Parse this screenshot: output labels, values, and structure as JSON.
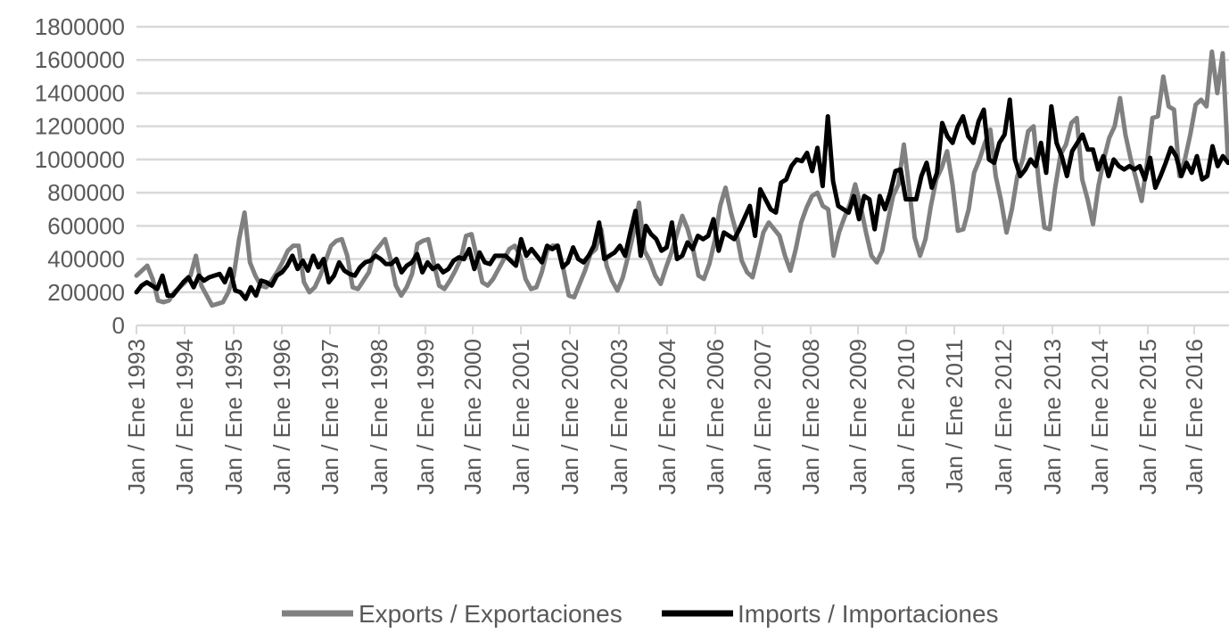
{
  "chart_data": {
    "type": "line",
    "title": "",
    "xlabel": "",
    "ylabel": "",
    "ylim": [
      0,
      1800000
    ],
    "y_ticks": [
      0,
      200000,
      400000,
      600000,
      800000,
      1000000,
      1200000,
      1400000,
      1600000,
      1800000
    ],
    "y_tick_labels": [
      "0",
      "200000",
      "400000",
      "600000",
      "800000",
      "1000000",
      "1200000",
      "1400000",
      "1600000",
      "1800000"
    ],
    "grid": true,
    "x_tick_labels": [
      "Jan / Ene 1993",
      "Jan / Ene 1994",
      "Jan / Ene 1995",
      "Jan / Ene 1996",
      "Jan / Ene 1997",
      "Jan / Ene 1998",
      "Jan / Ene 1999",
      "Jan / Ene 2000",
      "Jan / Ene 2001",
      "Jan / Ene 2002",
      "Jan / Ene 2003",
      "Jan / Ene 2004",
      "Jan / Ene 2006",
      "Jan / Ene 2007",
      "Jan / Ene 2008",
      "Jan / Ene 2009",
      "Jan / Ene 2010",
      "Jan / Ene 2011",
      "Jan / Ene 2012",
      "Jan / Ene 2013",
      "Jan / Ene 2014",
      "Jan / Ene 2015",
      "Jan / Ene 2016"
    ],
    "legend_position": "bottom",
    "series": [
      {
        "name": "Exports / Exportaciones",
        "color": "#808080",
        "values": [
          300000,
          330000,
          360000,
          280000,
          150000,
          140000,
          150000,
          200000,
          230000,
          260000,
          300000,
          420000,
          240000,
          180000,
          120000,
          130000,
          140000,
          200000,
          300000,
          520000,
          680000,
          380000,
          300000,
          240000,
          230000,
          270000,
          320000,
          380000,
          450000,
          480000,
          480000,
          260000,
          200000,
          230000,
          300000,
          390000,
          480000,
          510000,
          520000,
          420000,
          230000,
          220000,
          270000,
          320000,
          440000,
          480000,
          520000,
          400000,
          240000,
          180000,
          230000,
          310000,
          490000,
          510000,
          520000,
          380000,
          240000,
          220000,
          270000,
          330000,
          400000,
          540000,
          550000,
          410000,
          260000,
          240000,
          280000,
          340000,
          400000,
          460000,
          480000,
          420000,
          280000,
          220000,
          230000,
          320000,
          450000,
          480000,
          480000,
          340000,
          180000,
          170000,
          250000,
          330000,
          430000,
          460000,
          580000,
          360000,
          270000,
          210000,
          290000,
          420000,
          560000,
          740000,
          450000,
          390000,
          300000,
          250000,
          350000,
          440000,
          550000,
          660000,
          580000,
          460000,
          300000,
          280000,
          370000,
          510000,
          720000,
          830000,
          680000,
          560000,
          390000,
          320000,
          290000,
          420000,
          560000,
          620000,
          580000,
          540000,
          420000,
          330000,
          460000,
          620000,
          710000,
          780000,
          800000,
          720000,
          700000,
          420000,
          560000,
          650000,
          730000,
          850000,
          720000,
          560000,
          420000,
          380000,
          450000,
          620000,
          780000,
          850000,
          1090000,
          820000,
          530000,
          420000,
          520000,
          720000,
          880000,
          950000,
          1050000,
          850000,
          570000,
          580000,
          700000,
          920000,
          1000000,
          1100000,
          1180000,
          900000,
          750000,
          560000,
          700000,
          900000,
          1000000,
          1170000,
          1200000,
          850000,
          590000,
          580000,
          830000,
          1030000,
          1090000,
          1220000,
          1250000,
          880000,
          760000,
          610000,
          840000,
          1000000,
          1130000,
          1200000,
          1370000,
          1150000,
          1000000,
          880000,
          750000,
          980000,
          1250000,
          1260000,
          1500000,
          1320000,
          1300000,
          900000,
          1000000,
          1150000,
          1330000,
          1360000,
          1320000,
          1650000,
          1400000,
          1640000,
          980000
        ]
      },
      {
        "name": "Imports / Importaciones",
        "color": "#000000",
        "values": [
          200000,
          240000,
          260000,
          240000,
          220000,
          300000,
          180000,
          180000,
          220000,
          260000,
          290000,
          230000,
          300000,
          270000,
          290000,
          300000,
          310000,
          260000,
          340000,
          210000,
          200000,
          160000,
          230000,
          180000,
          270000,
          260000,
          240000,
          300000,
          320000,
          360000,
          420000,
          340000,
          390000,
          330000,
          420000,
          350000,
          400000,
          260000,
          300000,
          380000,
          330000,
          310000,
          300000,
          350000,
          380000,
          390000,
          420000,
          400000,
          370000,
          370000,
          400000,
          320000,
          360000,
          380000,
          430000,
          320000,
          380000,
          340000,
          360000,
          320000,
          340000,
          390000,
          410000,
          400000,
          460000,
          340000,
          440000,
          380000,
          370000,
          420000,
          420000,
          420000,
          390000,
          360000,
          520000,
          420000,
          460000,
          420000,
          380000,
          480000,
          460000,
          480000,
          350000,
          380000,
          470000,
          400000,
          380000,
          420000,
          480000,
          620000,
          400000,
          420000,
          440000,
          480000,
          420000,
          560000,
          690000,
          420000,
          600000,
          550000,
          520000,
          450000,
          470000,
          620000,
          400000,
          420000,
          500000,
          460000,
          540000,
          520000,
          540000,
          640000,
          450000,
          560000,
          540000,
          520000,
          580000,
          650000,
          720000,
          540000,
          820000,
          760000,
          700000,
          680000,
          860000,
          880000,
          960000,
          1000000,
          990000,
          1040000,
          930000,
          1070000,
          840000,
          1260000,
          870000,
          720000,
          700000,
          680000,
          780000,
          640000,
          780000,
          760000,
          580000,
          780000,
          700000,
          800000,
          930000,
          940000,
          760000,
          760000,
          760000,
          900000,
          980000,
          830000,
          920000,
          1220000,
          1140000,
          1100000,
          1200000,
          1260000,
          1140000,
          1100000,
          1230000,
          1300000,
          1000000,
          980000,
          1100000,
          1150000,
          1360000,
          1000000,
          900000,
          940000,
          1000000,
          960000,
          1100000,
          920000,
          1320000,
          1100000,
          1020000,
          900000,
          1050000,
          1100000,
          1150000,
          1060000,
          1060000,
          940000,
          1020000,
          900000,
          1000000,
          960000,
          940000,
          960000,
          940000,
          960000,
          880000,
          1010000,
          830000,
          900000,
          980000,
          1070000,
          1020000,
          900000,
          980000,
          920000,
          1020000,
          880000,
          900000,
          1080000,
          960000,
          1020000,
          980000
        ]
      }
    ]
  }
}
